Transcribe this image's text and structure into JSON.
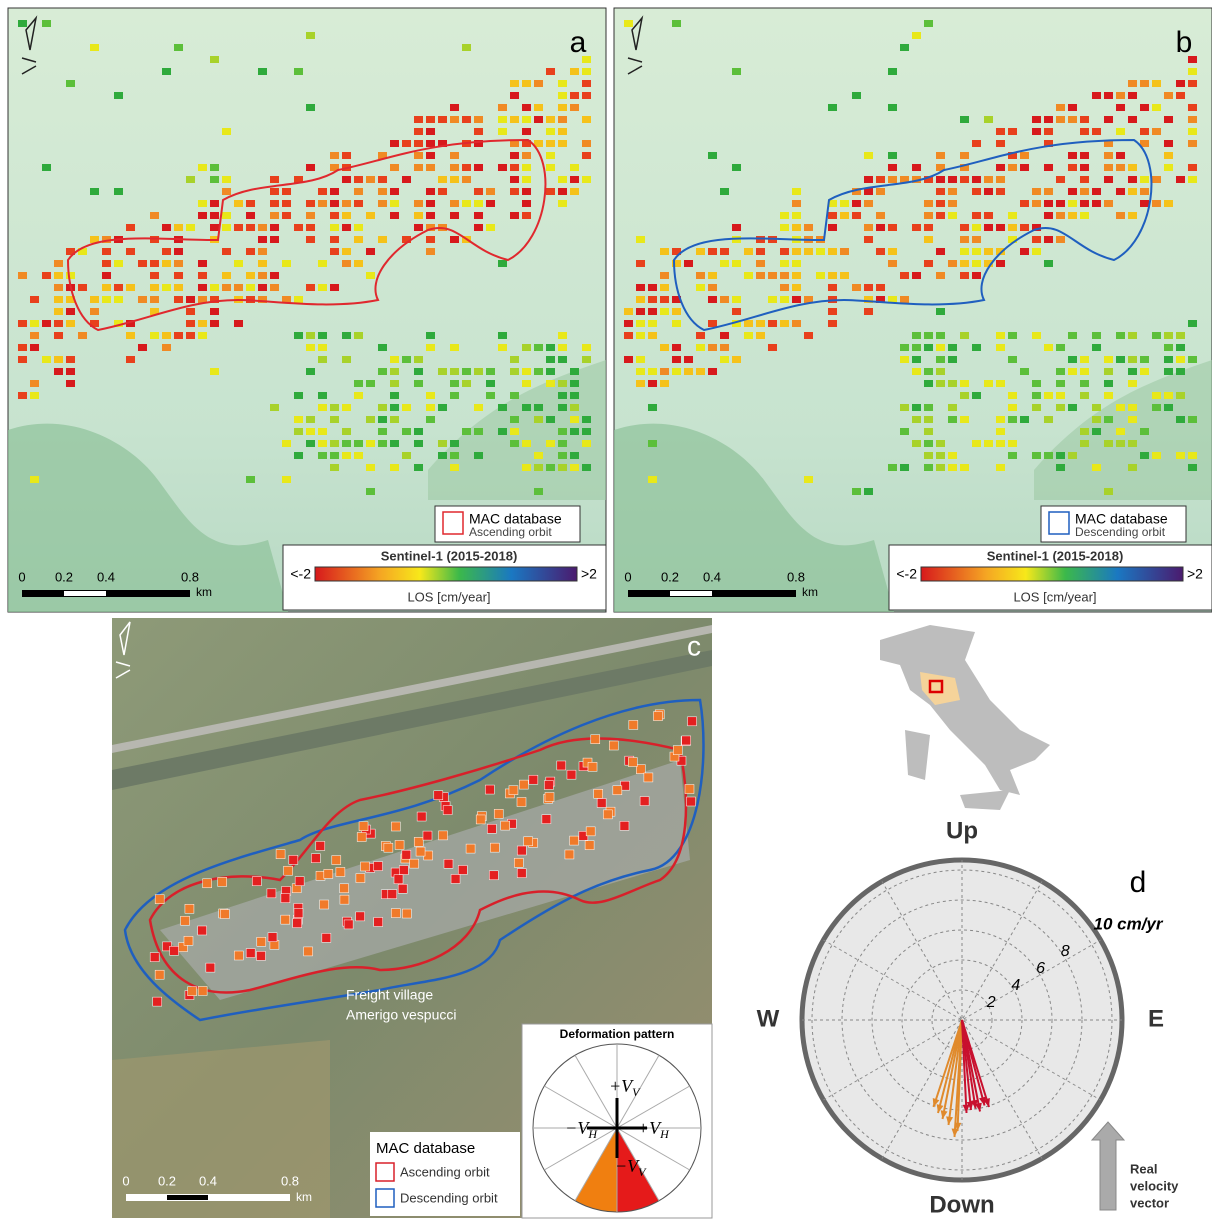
{
  "panels": [
    {
      "label": "a",
      "legend": {
        "title": "MAC database",
        "subtitle": "Ascending orbit",
        "color": "#e0282e"
      },
      "colorbar": {
        "title": "Sentinel-1 (2015-2018)",
        "min": "<-2",
        "max": ">2",
        "unit": "LOS [cm/year]"
      },
      "scale": {
        "ticks": [
          "0",
          "0.2",
          "0.4",
          "0.8"
        ],
        "unit": "km"
      }
    },
    {
      "label": "b",
      "legend": {
        "title": "MAC database",
        "subtitle": "Descending orbit",
        "color": "#1f5fbf"
      },
      "colorbar": {
        "title": "Sentinel-1 (2015-2018)",
        "min": "<-2",
        "max": ">2",
        "unit": "LOS [cm/year]"
      },
      "scale": {
        "ticks": [
          "0",
          "0.2",
          "0.4",
          "0.8"
        ],
        "unit": "km"
      }
    }
  ],
  "panel_c": {
    "label": "c",
    "place": [
      "Freight village",
      "Amerigo vespucci"
    ],
    "legend": {
      "title": "MAC database",
      "items": [
        "Ascending orbit",
        "Descending orbit"
      ]
    },
    "scale": {
      "ticks": [
        "0",
        "0.2",
        "0.4",
        "0.8"
      ],
      "unit": "km"
    },
    "inset": {
      "title": "Deformation pattern",
      "axes": [
        {
          "label": "+V",
          "sub": "V"
        },
        {
          "label": "−V",
          "sub": "H"
        },
        {
          "label": "+V",
          "sub": "H"
        },
        {
          "label": "−V",
          "sub": "V"
        }
      ]
    }
  },
  "panel_d": {
    "label": "d",
    "directions": [
      "Up",
      "Down",
      "W",
      "E"
    ],
    "ring_ticks": [
      2,
      4,
      6,
      8,
      {
        "value": 10,
        "label": "10 cm/yr"
      }
    ],
    "series": [
      {
        "color": "#e08a2c",
        "east": [
          -1.9,
          -1.6,
          -1.3,
          -0.9,
          -0.5,
          -0.3
        ],
        "up": [
          -5.8,
          -6.2,
          -6.6,
          -7.0,
          -7.8,
          -7.4
        ]
      },
      {
        "color": "#c8102e",
        "east": [
          0.3,
          0.6,
          0.9,
          1.2,
          1.5,
          1.8
        ],
        "up": [
          -6.2,
          -6.0,
          -5.9,
          -6.1,
          -5.7,
          -5.8
        ]
      }
    ],
    "note": [
      "Real",
      "velocity",
      "vector"
    ]
  }
}
